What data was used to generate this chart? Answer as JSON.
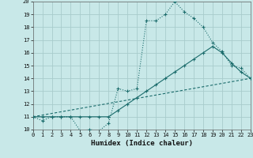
{
  "xlabel": "Humidex (Indice chaleur)",
  "xlim": [
    0,
    23
  ],
  "ylim": [
    10,
    20
  ],
  "xticks": [
    0,
    1,
    2,
    3,
    4,
    5,
    6,
    7,
    8,
    9,
    10,
    11,
    12,
    13,
    14,
    15,
    16,
    17,
    18,
    19,
    20,
    21,
    22,
    23
  ],
  "yticks": [
    10,
    11,
    12,
    13,
    14,
    15,
    16,
    17,
    18,
    19,
    20
  ],
  "bg_color": "#c8e8e8",
  "grid_color": "#a8cccc",
  "line_color": "#1a6b6b",
  "line1_x": [
    0,
    1,
    2,
    3,
    4,
    5,
    6,
    7,
    8,
    9,
    10,
    11,
    12,
    13,
    14,
    15,
    16,
    17,
    18,
    19,
    20,
    21,
    22,
    23
  ],
  "line1_y": [
    11,
    10.7,
    11,
    11,
    11,
    9.9,
    10.0,
    9.9,
    10.5,
    13.2,
    13.0,
    13.2,
    18.5,
    18.5,
    19.0,
    20.0,
    19.2,
    18.7,
    18.0,
    16.8,
    16.1,
    15.0,
    14.8,
    14.0
  ],
  "line2_x": [
    0,
    1,
    2,
    3,
    4,
    5,
    6,
    7,
    8,
    9,
    10,
    11,
    12,
    13,
    14,
    15,
    16,
    17,
    18,
    19,
    20,
    21,
    22,
    23
  ],
  "line2_y": [
    11,
    11,
    11,
    11,
    11,
    11,
    11,
    11,
    11,
    11.5,
    12.0,
    12.5,
    13.0,
    13.5,
    14.0,
    14.5,
    15.0,
    15.5,
    16.0,
    16.5,
    16.0,
    15.2,
    14.5,
    14.0
  ],
  "line3_x": [
    0,
    23
  ],
  "line3_y": [
    11,
    14
  ]
}
